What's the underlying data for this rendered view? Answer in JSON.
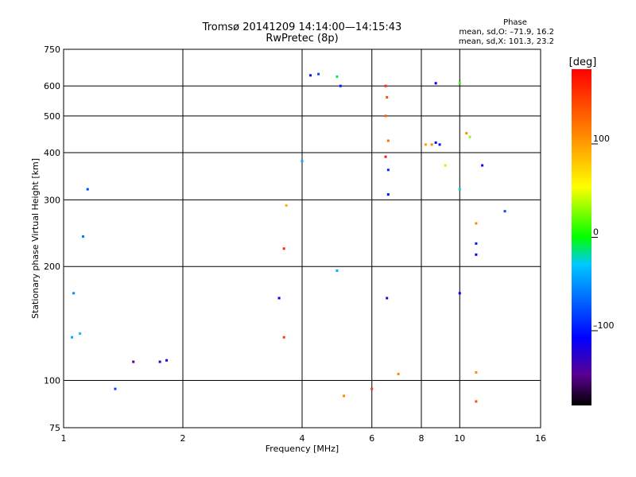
{
  "header": {
    "title": "Tromsø 20141209 14:14:00—14:15:43",
    "subtitle": "RwPretec (8p)",
    "phase_title": "Phase",
    "stat_o": "mean, sd,O: –71.9, 16.2",
    "stat_x": "mean, sd,X: 101.3, 23.2"
  },
  "chart_data": {
    "type": "scatter",
    "xlabel": "Frequency [MHz]",
    "ylabel": "Stationary phase Virtual Height [km]",
    "x_scale": "log",
    "y_scale": "log",
    "xlim": [
      1,
      16
    ],
    "ylim": [
      75,
      750
    ],
    "x_ticks": [
      1,
      2,
      4,
      6,
      8,
      10,
      16
    ],
    "x_tick_labels": [
      "1",
      "2",
      "4",
      "6",
      "8",
      "10",
      "16"
    ],
    "y_ticks": [
      75,
      100,
      200,
      300,
      400,
      500,
      600,
      750
    ],
    "y_tick_labels": [
      "75",
      "100",
      "200",
      "300",
      "400",
      "500",
      "600",
      "750"
    ],
    "grid": true,
    "colorbar": {
      "label": "[deg]",
      "range": [
        -180,
        180
      ],
      "ticks": [
        100,
        0,
        -100
      ],
      "tick_labels": [
        "100",
        "0",
        "–100"
      ],
      "colors": [
        "#000000",
        "#5a0090",
        "#0000ff",
        "#00c8ff",
        "#00ff00",
        "#ffff00",
        "#ff8c00",
        "#ff0000"
      ]
    },
    "series": [
      {
        "points": [
          {
            "x": 1.05,
            "y": 130,
            "phase": -40
          },
          {
            "x": 1.1,
            "y": 133,
            "phase": -30
          },
          {
            "x": 1.06,
            "y": 170,
            "phase": -50
          },
          {
            "x": 1.12,
            "y": 240,
            "phase": -60
          },
          {
            "x": 1.15,
            "y": 320,
            "phase": -80
          },
          {
            "x": 1.35,
            "y": 95,
            "phase": -80
          },
          {
            "x": 1.5,
            "y": 112,
            "phase": -150
          },
          {
            "x": 1.75,
            "y": 112,
            "phase": -130
          },
          {
            "x": 1.82,
            "y": 113,
            "phase": -120
          },
          {
            "x": 6.55,
            "y": 165,
            "phase": -120
          },
          {
            "x": 6.6,
            "y": 310,
            "phase": -100
          },
          {
            "x": 6.6,
            "y": 360,
            "phase": -90
          },
          {
            "x": 6.5,
            "y": 600,
            "phase": 160
          },
          {
            "x": 6.55,
            "y": 560,
            "phase": 140
          },
          {
            "x": 6.5,
            "y": 500,
            "phase": 130
          },
          {
            "x": 6.6,
            "y": 430,
            "phase": 120
          },
          {
            "x": 6.5,
            "y": 390,
            "phase": 170
          },
          {
            "x": 7.0,
            "y": 104,
            "phase": 110
          },
          {
            "x": 8.2,
            "y": 420,
            "phase": 100
          },
          {
            "x": 8.5,
            "y": 420,
            "phase": 110
          },
          {
            "x": 8.7,
            "y": 425,
            "phase": -110
          },
          {
            "x": 8.9,
            "y": 420,
            "phase": -100
          },
          {
            "x": 8.7,
            "y": 610,
            "phase": -110
          },
          {
            "x": 9.2,
            "y": 370,
            "phase": 40
          },
          {
            "x": 10.0,
            "y": 320,
            "phase": -20
          },
          {
            "x": 10.0,
            "y": 610,
            "phase": 10
          },
          {
            "x": 10.0,
            "y": 170,
            "phase": -110
          },
          {
            "x": 10.4,
            "y": 450,
            "phase": 110
          },
          {
            "x": 10.6,
            "y": 440,
            "phase": 30
          },
          {
            "x": 11.0,
            "y": 260,
            "phase": 110
          },
          {
            "x": 11.0,
            "y": 230,
            "phase": -100
          },
          {
            "x": 11.0,
            "y": 215,
            "phase": -110
          },
          {
            "x": 11.0,
            "y": 105,
            "phase": 110
          },
          {
            "x": 11.0,
            "y": 88,
            "phase": 140
          },
          {
            "x": 11.4,
            "y": 370,
            "phase": -110
          },
          {
            "x": 13.0,
            "y": 280,
            "phase": -80
          },
          {
            "x": 4.2,
            "y": 640,
            "phase": -100
          },
          {
            "x": 4.4,
            "y": 645,
            "phase": -80
          },
          {
            "x": 4.0,
            "y": 380,
            "phase": -40
          },
          {
            "x": 3.65,
            "y": 290,
            "phase": 90
          },
          {
            "x": 3.6,
            "y": 223,
            "phase": 160
          },
          {
            "x": 3.5,
            "y": 165,
            "phase": -110
          },
          {
            "x": 3.6,
            "y": 130,
            "phase": 150
          },
          {
            "x": 5.0,
            "y": 600,
            "phase": -100
          },
          {
            "x": 4.9,
            "y": 635,
            "phase": -10
          },
          {
            "x": 4.9,
            "y": 195,
            "phase": -40
          },
          {
            "x": 5.1,
            "y": 91,
            "phase": 110
          },
          {
            "x": 6.0,
            "y": 95,
            "phase": 150
          }
        ]
      }
    ]
  }
}
